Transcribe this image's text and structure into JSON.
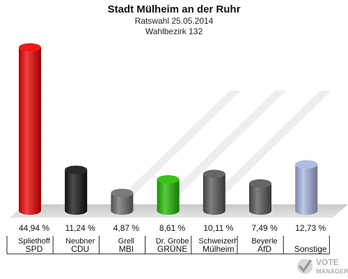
{
  "chart_data": {
    "type": "bar",
    "title": "Stadt Mülheim an der Ruhr",
    "subtitle": "Ratswahl 25.05.2014",
    "subtitle2": "Wahlbezirk 132",
    "categories": [
      {
        "name": "Spliethoff",
        "party": "SPD"
      },
      {
        "name": "Neubner",
        "party": "CDU"
      },
      {
        "name": "Grell",
        "party": "MBI"
      },
      {
        "name": "Dr. Grobe",
        "party": "GRÜNE"
      },
      {
        "name": "Schweizerh",
        "party": "Mülheim"
      },
      {
        "name": "Beyerle",
        "party": "AfD"
      },
      {
        "name": "",
        "party": "Sonstige"
      }
    ],
    "values": [
      44.94,
      11.24,
      4.87,
      8.61,
      10.11,
      7.49,
      12.73
    ],
    "value_labels": [
      "44,94 %",
      "11,24 %",
      "4,87 %",
      "8,61 %",
      "10,11 %",
      "7,49 %",
      "12,73 %"
    ],
    "colors": [
      "#ee0000",
      "#111111",
      "#6b6b6b",
      "#22bb00",
      "#555555",
      "#555555",
      "#a6b5e0"
    ],
    "ylim": [
      0,
      50
    ],
    "grid": false
  },
  "logo": {
    "line1": "VOTE",
    "line2": "MANAGER",
    "icon": "checkmark-icon"
  }
}
